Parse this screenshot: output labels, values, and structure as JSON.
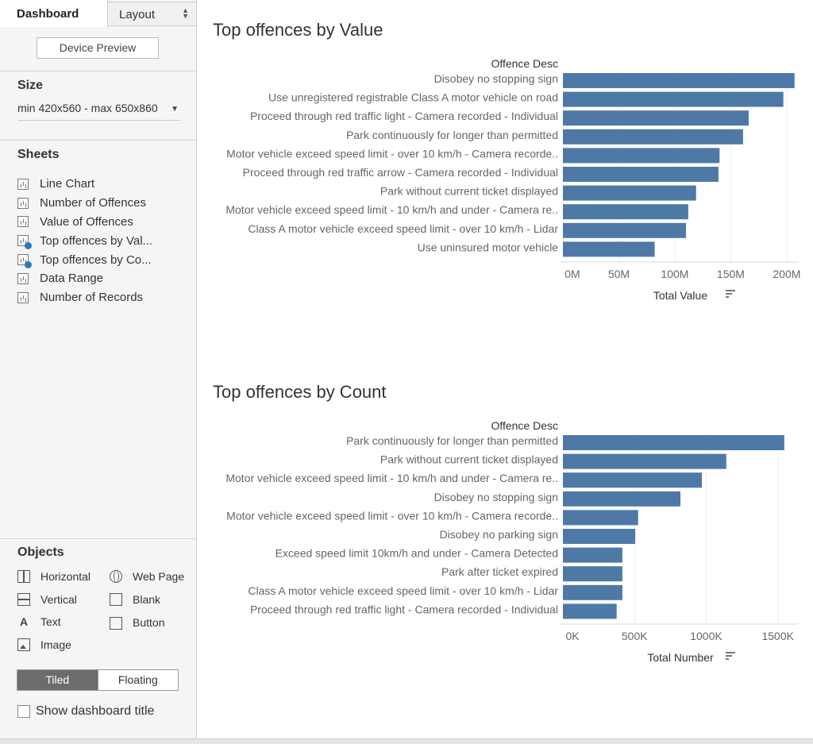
{
  "tabs": {
    "dashboard": "Dashboard",
    "layout": "Layout"
  },
  "device_preview_label": "Device Preview",
  "size": {
    "title": "Size",
    "value": "min 420x560 - max 650x860"
  },
  "sheets": {
    "title": "Sheets",
    "items": [
      {
        "label": "Line Chart",
        "in_use": false
      },
      {
        "label": "Number of Offences",
        "in_use": false
      },
      {
        "label": "Value of Offences",
        "in_use": false
      },
      {
        "label": "Top offences by Val...",
        "in_use": true
      },
      {
        "label": "Top offences by Co...",
        "in_use": true
      },
      {
        "label": "Data Range",
        "in_use": false
      },
      {
        "label": "Number of Records",
        "in_use": false
      }
    ]
  },
  "objects": {
    "title": "Objects",
    "items": {
      "horizontal": "Horizontal",
      "web_page": "Web Page",
      "vertical": "Vertical",
      "blank": "Blank",
      "text": "Text",
      "button": "Button",
      "image": "Image"
    }
  },
  "layout_mode": {
    "tiled": "Tiled",
    "floating": "Floating",
    "selected": "Tiled"
  },
  "show_dashboard_title": {
    "label": "Show dashboard title",
    "checked": false
  },
  "colors": {
    "bar": "#4e79a7",
    "accent_check": "#2a7bb9"
  },
  "chart_data": [
    {
      "type": "bar",
      "orientation": "horizontal",
      "title": "Top offences by Value",
      "category_header": "Offence Desc",
      "xlabel": "Total Value",
      "xlim": [
        0,
        210
      ],
      "ticks": [
        0,
        50,
        100,
        150,
        200
      ],
      "tick_labels": [
        "0M",
        "50M",
        "100M",
        "150M",
        "200M"
      ],
      "categories": [
        "Disobey no stopping sign",
        "Use unregistered registrable Class A motor vehicle on road",
        "Proceed through red traffic light - Camera recorded - Individual",
        "Park continuously for longer than permitted",
        "Motor vehicle exceed speed limit - over 10 km/h - Camera recorde..",
        "Proceed through red traffic arrow - Camera recorded - Individual",
        "Park without current ticket displayed",
        "Motor vehicle exceed speed limit - 10 km/h and under - Camera re..",
        "Class A motor vehicle exceed speed limit - over 10 km/h - Lidar",
        "Use uninsured motor vehicle"
      ],
      "values": [
        207,
        197,
        166,
        161,
        140,
        139,
        119,
        112,
        110,
        82
      ],
      "unit": "M"
    },
    {
      "type": "bar",
      "orientation": "horizontal",
      "title": "Top offences by Count",
      "category_header": "Offence Desc",
      "xlabel": "Total Number",
      "xlim": [
        0,
        1640
      ],
      "ticks": [
        0,
        500,
        1000,
        1500
      ],
      "tick_labels": [
        "0K",
        "500K",
        "1000K",
        "1500K"
      ],
      "categories": [
        "Park continuously for longer than permitted",
        "Park without current ticket displayed",
        "Motor vehicle exceed speed limit - 10 km/h and under - Camera re..",
        "Disobey no stopping sign",
        "Motor vehicle exceed speed limit - over 10 km/h - Camera recorde..",
        "Disobey no parking sign",
        "Exceed speed limit 10km/h and under - Camera Detected",
        "Park after ticket expired",
        "Class A motor vehicle exceed speed limit - over 10 km/h - Lidar",
        "Proceed through red traffic light - Camera recorded - Individual"
      ],
      "values": [
        1545,
        1140,
        970,
        820,
        525,
        505,
        415,
        415,
        415,
        375
      ],
      "unit": "K"
    }
  ]
}
